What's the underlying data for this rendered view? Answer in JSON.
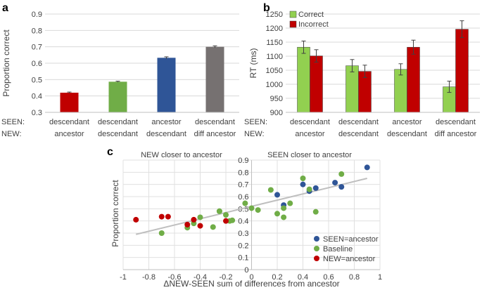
{
  "panels": {
    "a": "a",
    "b": "b",
    "c": "c"
  },
  "row_labels": {
    "seen": "SEEN:",
    "new": "NEW:"
  },
  "chart_data": [
    {
      "type": "bar",
      "panel": "a",
      "ylabel": "Proportion correct",
      "ylim": [
        0.3,
        0.9
      ],
      "yticks": [
        0.3,
        0.4,
        0.5,
        0.6,
        0.7,
        0.8,
        0.9
      ],
      "tick_labels": [
        "0.3",
        "0.4",
        "0.5",
        "0.6",
        "0.7",
        "0.8",
        "0.9"
      ],
      "categories": [
        {
          "seen": "descendant",
          "new": "ancestor"
        },
        {
          "seen": "descendant",
          "new": "descendant"
        },
        {
          "seen": "ancestor",
          "new": "descendant"
        },
        {
          "seen": "descendant",
          "new": "diff ancestor"
        }
      ],
      "values": [
        0.42,
        0.487,
        0.633,
        0.7
      ],
      "errors": [
        0.004,
        0.003,
        0.006,
        0.006
      ],
      "colors": [
        "#c00000",
        "#70ad47",
        "#2f5597",
        "#767171"
      ],
      "grid": true
    },
    {
      "type": "bar",
      "panel": "b",
      "ylabel": "RT (ms)",
      "ylim": [
        900,
        1250
      ],
      "yticks": [
        900,
        950,
        1000,
        1050,
        1100,
        1150,
        1200,
        1250
      ],
      "tick_labels": [
        "900",
        "950",
        "1000",
        "1050",
        "1100",
        "1150",
        "1200",
        "1250"
      ],
      "categories": [
        {
          "seen": "descendant",
          "new": "ancestor"
        },
        {
          "seen": "descendant",
          "new": "descendant"
        },
        {
          "seen": "ancestor",
          "new": "descendant"
        },
        {
          "seen": "descendant",
          "new": "diff ancestor"
        }
      ],
      "series": [
        {
          "name": "Correct",
          "color": "#92d050",
          "values": [
            1132,
            1066,
            1053,
            991
          ],
          "errors": [
            22,
            22,
            20,
            20
          ]
        },
        {
          "name": "Incorrect",
          "color": "#c00000",
          "values": [
            1101,
            1046,
            1132,
            1196
          ],
          "errors": [
            22,
            22,
            25,
            30
          ]
        }
      ],
      "legend": "top-left",
      "grid": true
    },
    {
      "type": "scatter",
      "panel": "c",
      "xlabel": "ΔNEW-SEEN sum of differences from ancestor",
      "ylabel": "Proportion correct",
      "xlim": [
        -1,
        1
      ],
      "ylim": [
        0,
        0.9
      ],
      "xticks": [
        -1,
        -0.8,
        -0.6,
        -0.4,
        -0.2,
        0,
        0.2,
        0.4,
        0.6,
        0.8,
        1
      ],
      "xtick_labels": [
        "-1",
        "-0.8",
        "-0.6",
        "-0.4",
        "-0.2",
        "0",
        "0.2",
        "0.4",
        "0.6",
        "0.8",
        "1"
      ],
      "yticks": [
        0,
        0.1,
        0.2,
        0.3,
        0.4,
        0.5,
        0.6,
        0.7,
        0.8,
        0.9
      ],
      "ytick_labels": [
        "0",
        "0.1",
        "0.2",
        "0.3",
        "0.4",
        "0.5",
        "0.6",
        "0.7",
        "0.8",
        "0.9"
      ],
      "annotations": {
        "left": "NEW closer to ancestor",
        "right": "SEEN closer to ancestor"
      },
      "trendline": {
        "x": [
          -0.9,
          0.9
        ],
        "y": [
          0.29,
          0.75
        ],
        "color": "#bfbfbf"
      },
      "legend": "bottom-right",
      "grid": true,
      "series": [
        {
          "name": "SEEN=ancestor",
          "color": "#2f5597",
          "points": [
            [
              0.9,
              0.84
            ],
            [
              0.7,
              0.68
            ],
            [
              0.65,
              0.715
            ],
            [
              0.5,
              0.67
            ],
            [
              0.45,
              0.645
            ],
            [
              0.4,
              0.7
            ],
            [
              0.2,
              0.615
            ],
            [
              0.25,
              0.53
            ]
          ]
        },
        {
          "name": "Baseline",
          "color": "#70ad47",
          "points": [
            [
              0.7,
              0.785
            ],
            [
              0.4,
              0.75
            ],
            [
              0.15,
              0.655
            ],
            [
              0.45,
              0.66
            ],
            [
              0.3,
              0.545
            ],
            [
              0.25,
              0.505
            ],
            [
              0.2,
              0.46
            ],
            [
              0.25,
              0.43
            ],
            [
              0.5,
              0.475
            ],
            [
              0.0,
              0.505
            ],
            [
              0.05,
              0.49
            ],
            [
              -0.05,
              0.545
            ],
            [
              -0.15,
              0.405
            ],
            [
              -0.2,
              0.45
            ],
            [
              -0.25,
              0.48
            ],
            [
              -0.25,
              0.48
            ],
            [
              -0.4,
              0.43
            ],
            [
              -0.45,
              0.38
            ],
            [
              -0.3,
              0.35
            ],
            [
              -0.5,
              0.345
            ],
            [
              -0.7,
              0.3
            ],
            [
              -0.17,
              0.4
            ]
          ]
        },
        {
          "name": "NEW=ancestor",
          "color": "#c00000",
          "points": [
            [
              -0.9,
              0.41
            ],
            [
              -0.7,
              0.435
            ],
            [
              -0.65,
              0.435
            ],
            [
              -0.5,
              0.37
            ],
            [
              -0.45,
              0.41
            ],
            [
              -0.4,
              0.36
            ],
            [
              -0.2,
              0.4
            ]
          ]
        }
      ]
    }
  ]
}
